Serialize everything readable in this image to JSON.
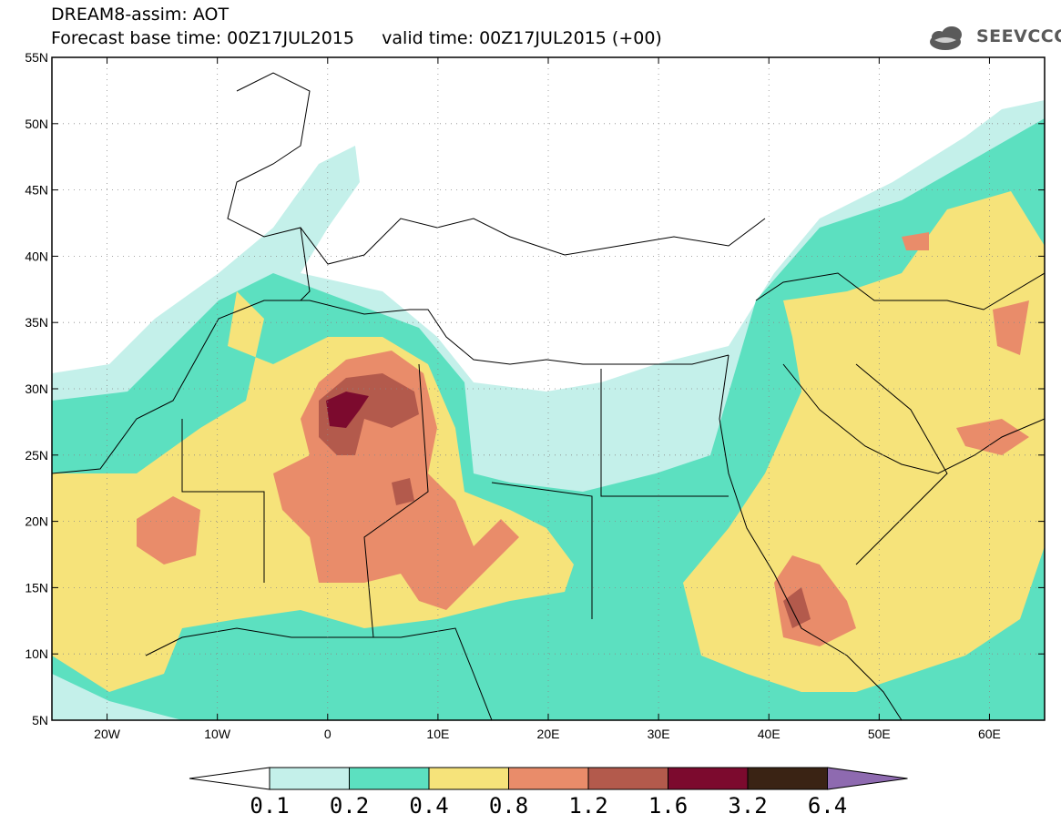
{
  "header": {
    "title_line1": "DREAM8-assim: AOT",
    "title_line2": "Forecast base time: 00Z17JUL2015     valid time: 00Z17JUL2015 (+00)",
    "logo_text": "SEEVCCC"
  },
  "map": {
    "lat_labels": [
      "55N",
      "50N",
      "45N",
      "40N",
      "35N",
      "30N",
      "25N",
      "20N",
      "15N",
      "10N",
      "5N"
    ],
    "lon_labels": [
      "20W",
      "10W",
      "0",
      "10E",
      "20E",
      "30E",
      "40E",
      "50E",
      "60E"
    ],
    "colorbar": {
      "thresholds": [
        "0.1",
        "0.2",
        "0.4",
        "0.8",
        "1.2",
        "1.6",
        "3.2",
        "6.4"
      ],
      "colors": [
        "#ffffff",
        "#c4f0ea",
        "#5ce0c0",
        "#f6e37a",
        "#e98c6a",
        "#b35a4c",
        "#7c0a2e",
        "#3a2314",
        "#8e6ab0"
      ]
    },
    "land_color": "#ffffff",
    "border_color": "#000000"
  }
}
